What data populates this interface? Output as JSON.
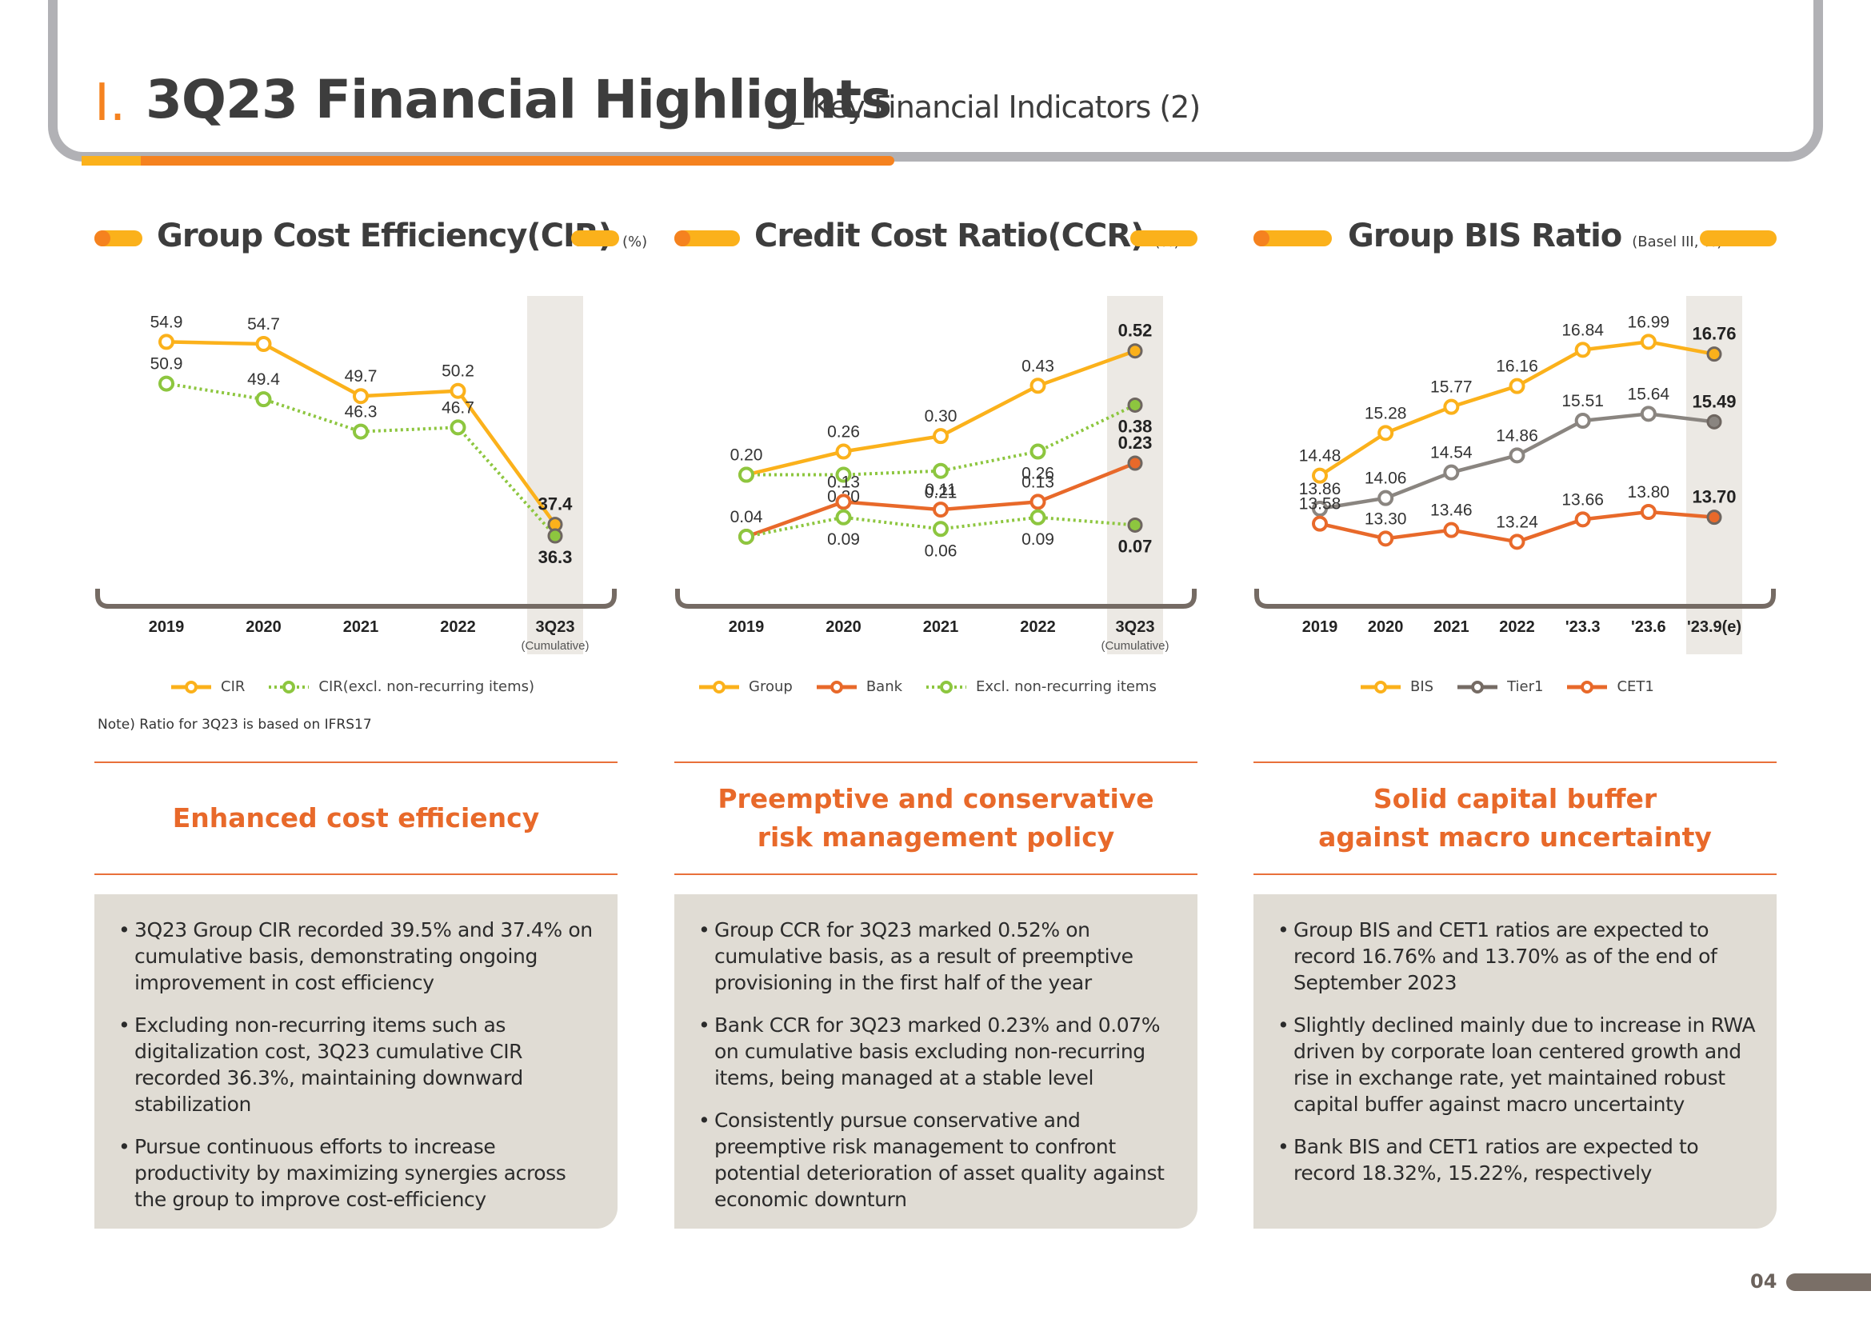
{
  "header": {
    "section_mark": "I.",
    "title": "3Q23 Financial Highlights",
    "subtitle": "_ Key Financial Indicators (2)"
  },
  "colors": {
    "orange": "#f5821f",
    "yellow": "#fbb11b",
    "dark_orange": "#e8692a",
    "green": "#8dc63f",
    "gray_line": "#8a8580",
    "axis": "#756b64",
    "highlight_bg": "#ece9e4",
    "box_bg": "#e0dcd4"
  },
  "sections": [
    {
      "title": "Group Cost Efficiency(CIR)",
      "unit": "(%)",
      "legend": [
        "CIR",
        "CIR(excl. non-recurring items)"
      ],
      "note": "Note) Ratio for 3Q23 is based on IFRS17",
      "subhead": "Enhanced cost efficiency",
      "bullets": [
        "3Q23 Group CIR recorded 39.5% and 37.4% on cumulative basis, demonstrating ongoing improvement in cost efficiency",
        "Excluding non-recurring items such as digitalization cost, 3Q23 cumulative CIR recorded 36.3%, maintaining downward stabilization",
        "Pursue continuous efforts to increase productivity by maximizing synergies across the group to improve cost-efficiency"
      ]
    },
    {
      "title": "Credit Cost Ratio(CCR)",
      "unit": "(%)",
      "legend": [
        "Group",
        "Bank",
        "Excl. non-recurring items"
      ],
      "subhead": "Preemptive and conservative\nrisk management policy",
      "bullets": [
        "Group CCR for 3Q23 marked 0.52% on cumulative basis, as a result of preemptive provisioning in the first half of the year",
        "Bank CCR for 3Q23 marked 0.23% and 0.07% on cumulative basis excluding non-recurring items, being managed at a stable level",
        "Consistently pursue conservative and preemptive risk management to confront potential deterioration of asset quality against economic downturn"
      ]
    },
    {
      "title": "Group BIS Ratio",
      "unit": "(Basel III, %)",
      "legend": [
        "BIS",
        "Tier1",
        "CET1"
      ],
      "subhead": "Solid capital buffer\nagainst macro uncertainty",
      "bullets": [
        "Group BIS and CET1 ratios are expected to record 16.76% and 13.70% as of the end of September 2023",
        "Slightly declined mainly due to increase in RWA driven by corporate loan centered growth and rise in exchange rate, yet maintained robust capital buffer against macro uncertainty",
        "Bank BIS and CET1 ratios are expected to record 18.32%, 15.22%, respectively"
      ]
    }
  ],
  "page_number": "04",
  "chart_data": [
    {
      "type": "line",
      "title": "Group Cost Efficiency(CIR) (%)",
      "categories": [
        "2019",
        "2020",
        "2021",
        "2022",
        "3Q23"
      ],
      "category_sublabels": [
        "",
        "",
        "",
        "",
        "(Cumulative)"
      ],
      "highlight_category": "3Q23",
      "ylim": [
        34,
        57
      ],
      "grid": false,
      "legend_position": "bottom",
      "series": [
        {
          "name": "CIR",
          "style": "solid",
          "color": "#fbb11b",
          "values": [
            54.9,
            54.7,
            49.7,
            50.2,
            37.4
          ],
          "labels": [
            "54.9",
            "54.7",
            "49.7",
            "50.2",
            "37.4"
          ],
          "label_pos": [
            "above",
            "above",
            "above",
            "above",
            "above"
          ]
        },
        {
          "name": "CIR(excl. non-recurring items)",
          "style": "dotted",
          "color": "#8dc63f",
          "values": [
            50.9,
            49.4,
            46.3,
            46.7,
            36.3
          ],
          "labels": [
            "50.9",
            "49.4",
            "46.3",
            "46.7",
            "36.3"
          ],
          "label_pos": [
            "above",
            "above",
            "above",
            "above",
            "below"
          ]
        }
      ]
    },
    {
      "type": "line",
      "title": "Credit Cost Ratio(CCR) (%)",
      "categories": [
        "2019",
        "2020",
        "2021",
        "2022",
        "3Q23"
      ],
      "category_sublabels": [
        "",
        "",
        "",
        "",
        "(Cumulative)"
      ],
      "highlight_category": "3Q23",
      "ylim": [
        -0.02,
        0.6
      ],
      "grid": false,
      "legend_position": "bottom",
      "series": [
        {
          "name": "Group",
          "style": "solid",
          "color": "#fbb11b",
          "values": [
            0.2,
            0.26,
            0.3,
            0.43,
            0.52
          ],
          "labels": [
            "0.20",
            "0.26",
            "0.30",
            "0.43",
            "0.52"
          ],
          "label_pos": [
            "above",
            "above",
            "above",
            "above",
            "above"
          ]
        },
        {
          "name": "Group excl. non-recurring items",
          "style": "dotted",
          "color": "#8dc63f",
          "values": [
            0.2,
            0.2,
            0.21,
            0.26,
            0.38
          ],
          "labels": [
            "",
            "0.20",
            "0.21",
            "0.26",
            "0.38"
          ],
          "label_pos": [
            "none",
            "below",
            "below",
            "below",
            "below"
          ]
        },
        {
          "name": "Bank",
          "style": "solid",
          "color": "#e8692a",
          "values": [
            0.04,
            0.13,
            0.11,
            0.13,
            0.23
          ],
          "labels": [
            "0.04",
            "0.13",
            "0.11",
            "0.13",
            "0.23"
          ],
          "label_pos": [
            "above",
            "above",
            "above",
            "above",
            "above"
          ]
        },
        {
          "name": "Bank excl. non-recurring items",
          "style": "dotted",
          "color": "#8dc63f",
          "values": [
            0.04,
            0.09,
            0.06,
            0.09,
            0.07
          ],
          "labels": [
            "",
            "0.09",
            "0.06",
            "0.09",
            "0.07"
          ],
          "label_pos": [
            "none",
            "below",
            "below",
            "below",
            "below"
          ]
        }
      ]
    },
    {
      "type": "line",
      "title": "Group BIS Ratio (Basel III, %)",
      "categories": [
        "2019",
        "2020",
        "2021",
        "2022",
        "'23.3",
        "'23.6",
        "'23.9(e)"
      ],
      "category_sublabels": [
        "",
        "",
        "",
        "",
        "",
        "",
        ""
      ],
      "highlight_category": "'23.9(e)",
      "ylim": [
        12.9,
        17.4
      ],
      "grid": false,
      "legend_position": "bottom",
      "series": [
        {
          "name": "BIS",
          "style": "solid",
          "color": "#fbb11b",
          "values": [
            14.48,
            15.28,
            15.77,
            16.16,
            16.84,
            16.99,
            16.76
          ],
          "labels": [
            "14.48",
            "15.28",
            "15.77",
            "16.16",
            "16.84",
            "16.99",
            "16.76"
          ],
          "label_pos": [
            "above",
            "above",
            "above",
            "above",
            "above",
            "above",
            "above"
          ]
        },
        {
          "name": "Tier1",
          "style": "solid",
          "color": "#8a8580",
          "values": [
            13.86,
            14.06,
            14.54,
            14.86,
            15.51,
            15.64,
            15.49
          ],
          "labels": [
            "13.86",
            "14.06",
            "14.54",
            "14.86",
            "15.51",
            "15.64",
            "15.49"
          ],
          "label_pos": [
            "above",
            "above",
            "above",
            "above",
            "above",
            "above",
            "above"
          ]
        },
        {
          "name": "CET1",
          "style": "solid",
          "color": "#e8692a",
          "values": [
            13.58,
            13.3,
            13.46,
            13.24,
            13.66,
            13.8,
            13.7
          ],
          "labels": [
            "13.58",
            "13.30",
            "13.46",
            "13.24",
            "13.66",
            "13.80",
            "13.70"
          ],
          "label_pos": [
            "above",
            "above",
            "above",
            "above",
            "above",
            "above",
            "above"
          ]
        }
      ]
    }
  ]
}
